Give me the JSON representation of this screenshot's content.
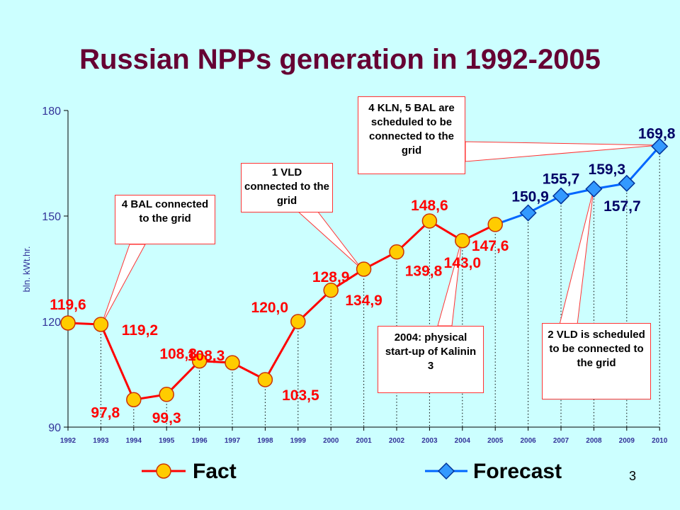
{
  "page_number": "3",
  "chart_data": {
    "type": "line",
    "title": "Russian NPPs generation in 1992-2005",
    "ylabel": "bln. kWt.hr.",
    "xlabel": "",
    "ylim": [
      90,
      180
    ],
    "yticks": [
      90,
      120,
      150,
      180
    ],
    "categories": [
      "1992",
      "1993",
      "1994",
      "1995",
      "1996",
      "1997",
      "1998",
      "1999",
      "2000",
      "2001",
      "2002",
      "2003",
      "2004",
      "2005",
      "2006",
      "2007",
      "2008",
      "2009",
      "2010"
    ],
    "grid": "dotted vertical drop lines",
    "legend_position": "bottom",
    "series": [
      {
        "name": "Fact",
        "color": "#ff0000",
        "marker_color": "#ffcc00",
        "marker": "circle",
        "x": [
          "1992",
          "1993",
          "1994",
          "1995",
          "1996",
          "1997",
          "1998",
          "1999",
          "2000",
          "2001",
          "2002",
          "2003",
          "2004",
          "2005"
        ],
        "values": [
          119.6,
          119.2,
          97.8,
          99.3,
          108.8,
          108.3,
          103.5,
          120.0,
          128.9,
          134.9,
          139.8,
          148.6,
          143.0,
          147.6
        ],
        "labels": [
          "119,6",
          "119,2",
          "97,8",
          "99,3",
          "108,8",
          "108,3",
          "103,5",
          "120,0",
          "128,9",
          "134,9",
          "139,8",
          "148,6",
          "143,0",
          "147,6"
        ]
      },
      {
        "name": "Forecast",
        "color": "#0066ff",
        "marker_color": "#3399ff",
        "marker": "diamond",
        "x": [
          "2005",
          "2006",
          "2007",
          "2008",
          "2009",
          "2010"
        ],
        "values": [
          147.6,
          150.9,
          155.7,
          157.7,
          159.3,
          169.8
        ],
        "labels": [
          "",
          "150,9",
          "155,7",
          "157,7",
          "159,3",
          "169,8"
        ]
      }
    ],
    "annotations": [
      {
        "id": "a1",
        "text": "4 BAL connected to the grid"
      },
      {
        "id": "a2",
        "text": "1 VLD connected to the grid"
      },
      {
        "id": "a3",
        "text": "4 KLN, 5 BAL are scheduled to be connected to the grid"
      },
      {
        "id": "a4",
        "text": "2004: physical start-up of Kalinin 3"
      },
      {
        "id": "a5",
        "text": "2 VLD is scheduled to be connected to the grid"
      }
    ]
  }
}
